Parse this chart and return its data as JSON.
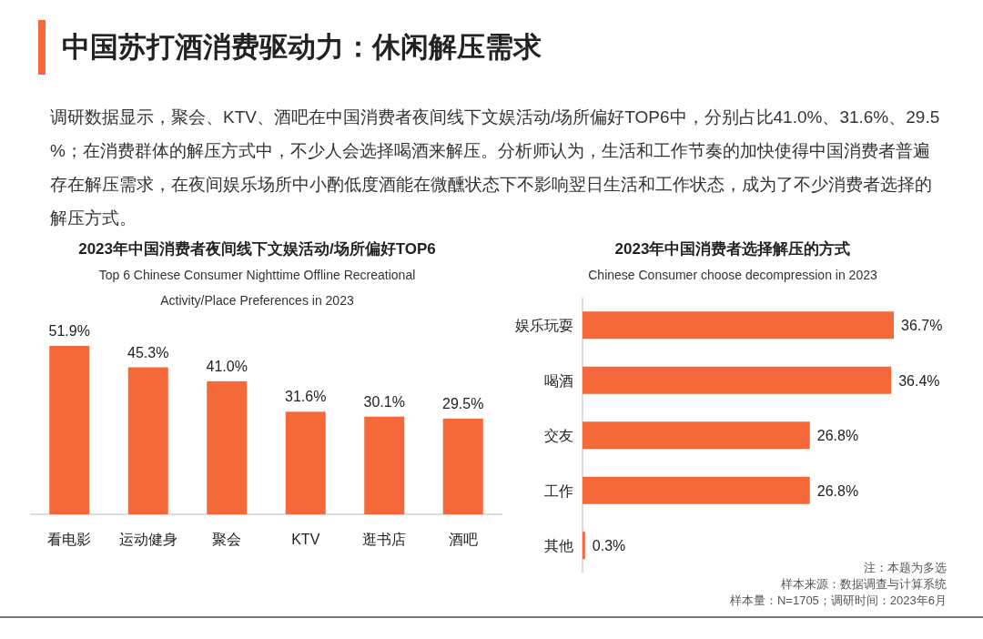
{
  "chart_data": [
    {
      "type": "other",
      "title": "中国苏打酒消费驱动力：休闲解压需求",
      "subtitle": "调研数据显示，聚会、KTV、酒吧在中国消费者夜间线下文娱活动/场所偏好TOP6中，分别占比41.0%、31.6%、29.5%；在消费群体的解压方式中，不少人会选择喝酒来解压。分析师认为，生活和工作节奏的加快使得中国消费者普遍存在解压需求，在夜间娱乐场所中小酌低度酒能在微醺状态下不影响翌日生活和工作状态，成为了不少消费者选择的解压方式。"
    },
    {
      "type": "bar",
      "title": "2023年中国消费者夜间线下文娱活动/场所偏好TOP6",
      "subtitle": "Top 6 Chinese Consumer Nighttime Offline Recreational Activity/Place Preferences in 2023",
      "categories": [
        "看电影",
        "运动健身",
        "聚会",
        "KTV",
        "逛书店",
        "酒吧"
      ],
      "values": [
        51.9,
        45.3,
        41.0,
        31.6,
        30.1,
        29.5
      ],
      "value_labels": [
        "51.9%",
        "45.3%",
        "41.0%",
        "31.6%",
        "30.1%",
        "29.5%"
      ],
      "color": "#f4683a"
    },
    {
      "type": "bar",
      "orientation": "horizontal",
      "title": "2023年中国消费者选择解压的方式",
      "subtitle": "Chinese Consumer choose decompression in 2023",
      "categories": [
        "娱乐玩耍",
        "喝酒",
        "交友",
        "工作",
        "其他"
      ],
      "values": [
        36.7,
        36.4,
        26.8,
        26.8,
        0.3
      ],
      "value_labels": [
        "36.7%",
        "36.4%",
        "26.8%",
        "26.8%",
        "0.3%"
      ],
      "color": "#f4683a",
      "annotations": [
        "注：本题为多选",
        "样本来源：数据调查与计算系统",
        "样本量：N=1705；调研时间：2023年6月"
      ]
    }
  ]
}
